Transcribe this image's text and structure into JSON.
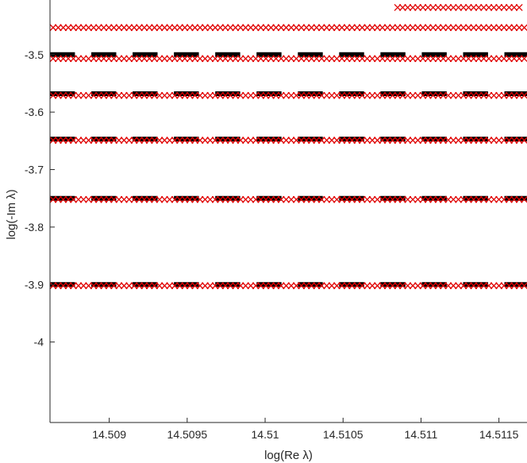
{
  "chart_data": {
    "type": "scatter",
    "title": "",
    "xlabel": "log(Re λ)",
    "ylabel": "log(-Im λ)",
    "xlim": [
      14.50862,
      14.51168
    ],
    "ylim": [
      -4.14,
      -3.405
    ],
    "x_ticks": [
      14.509,
      14.5095,
      14.51,
      14.5105,
      14.511,
      14.5115
    ],
    "x_tick_labels": [
      "14.509",
      "14.5095",
      "14.51",
      "14.5105",
      "14.511",
      "14.5115"
    ],
    "y_ticks": [
      -3.5,
      -3.6,
      -3.7,
      -3.8,
      -3.9,
      -4.0
    ],
    "y_tick_labels": [
      "-3.5",
      "-3.6",
      "-3.7",
      "-3.8",
      "-3.9",
      "-4"
    ],
    "grid": false,
    "series": [
      {
        "marker": "dash",
        "color": "#000000",
        "x_start": 14.50862,
        "x_step": 0.000265,
        "count": 12,
        "dash_width_data": 0.00016,
        "y_levels": [
          -3.5,
          -3.568,
          -3.647,
          -3.75,
          -3.9
        ]
      },
      {
        "marker": "x",
        "color": "#e00000",
        "x_start": 14.50864,
        "x_step": 3.25e-05,
        "count": 94,
        "y_levels": [
          -3.453,
          -3.507,
          -3.571,
          -3.649,
          -3.752,
          -3.902
        ]
      },
      {
        "marker": "x",
        "color": "#e00000",
        "x_start": 14.51085,
        "x_step": 3.25e-05,
        "count": 25,
        "y_levels": [
          -3.418
        ]
      }
    ]
  }
}
